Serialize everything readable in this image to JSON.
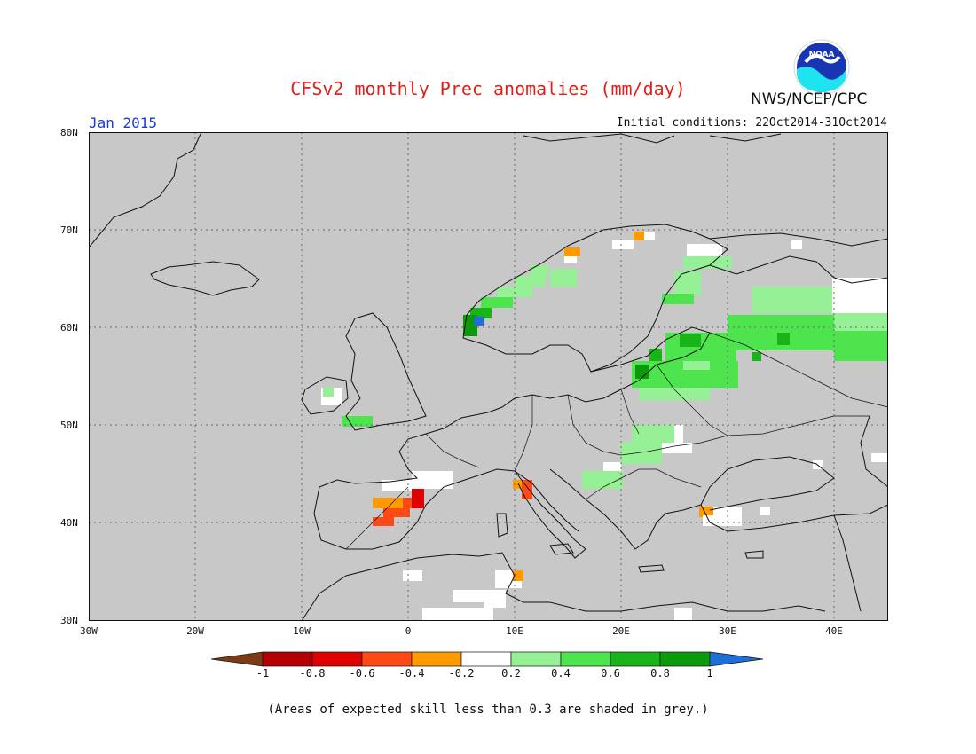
{
  "title": "CFSv2 monthly Prec anomalies (mm/day)",
  "agency": "NWS/NCEP/CPC",
  "logo_text": "NOAA",
  "month": "Jan 2015",
  "initial_conditions": "Initial conditions: 22Oct2014-31Oct2014",
  "footnote": "(Areas of expected skill less than 0.3 are shaded in grey.)",
  "lat_labels": [
    "80N",
    "70N",
    "60N",
    "50N",
    "40N",
    "30N"
  ],
  "lon_labels": [
    "30W",
    "20W",
    "10W",
    "0",
    "10E",
    "20E",
    "30E",
    "40E"
  ],
  "colorbar": {
    "labels": [
      "-1",
      "-0.8",
      "-0.6",
      "-0.4",
      "-0.2",
      "0.2",
      "0.4",
      "0.6",
      "0.8",
      "1"
    ],
    "colors": [
      "#7a3b16",
      "#b40000",
      "#e00000",
      "#ff4a16",
      "#ff9a00",
      "#ffffff",
      "#96f096",
      "#4ee44e",
      "#18b418",
      "#0a9a0a",
      "#1f6fd8"
    ]
  },
  "colors": {
    "title": "#e0201c",
    "month": "#1a3cd8",
    "map_background": "#c8c8c8",
    "coastline": "#111111"
  }
}
